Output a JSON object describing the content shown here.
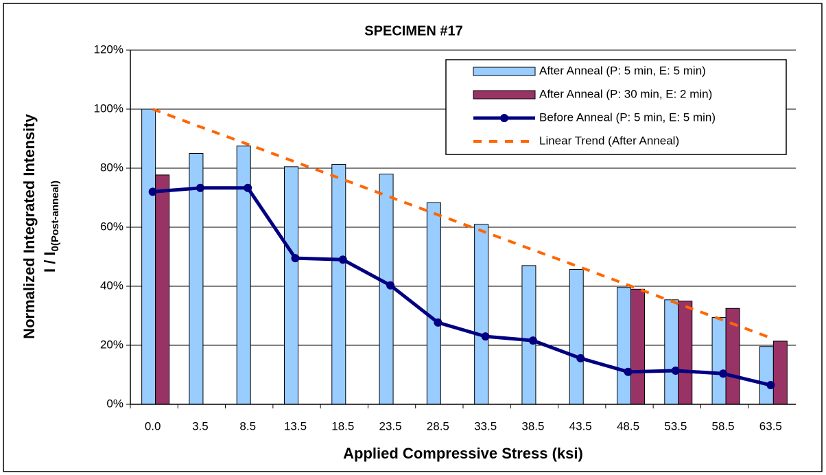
{
  "chart_data": {
    "type": "bar",
    "title": "SPECIMEN #17",
    "x_label": "Applied Compressive Stress (ksi)",
    "y_label": "Normalized Integrated Intensity",
    "y_label_2": "I / I",
    "y_label_2_sub": "0(Post-anneal)",
    "categories": [
      "0.0",
      "3.5",
      "8.5",
      "13.5",
      "18.5",
      "23.5",
      "28.5",
      "33.5",
      "38.5",
      "43.5",
      "48.5",
      "53.5",
      "58.5",
      "63.5"
    ],
    "ylim": [
      0,
      120
    ],
    "yticks": [
      {
        "value": 0,
        "label": "0%"
      },
      {
        "value": 20,
        "label": "20%"
      },
      {
        "value": 40,
        "label": "40%"
      },
      {
        "value": 60,
        "label": "60%"
      },
      {
        "value": 80,
        "label": "80%"
      },
      {
        "value": 100,
        "label": "100%"
      },
      {
        "value": 120,
        "label": "120%"
      }
    ],
    "grid": true,
    "legend": "upper right",
    "series": [
      {
        "name": "After Anneal (P: 5 min, E: 5 min)",
        "type": "bar",
        "color": "#99ccff",
        "values": [
          100,
          85,
          87.5,
          80.5,
          81.3,
          78,
          68.3,
          61,
          47,
          45.7,
          39.6,
          35.4,
          29.4,
          19.6
        ]
      },
      {
        "name": "After Anneal (P: 30 min, E: 2 min)",
        "type": "bar",
        "color": "#993366",
        "values": [
          77.7,
          null,
          null,
          null,
          null,
          null,
          null,
          null,
          null,
          null,
          39,
          35,
          32.5,
          21.4
        ]
      },
      {
        "name": "Before Anneal (P: 5 min, E: 5 min)",
        "type": "line",
        "color": "#000080",
        "values": [
          72,
          73.3,
          73.3,
          49.5,
          49,
          40.3,
          27.7,
          23,
          21.6,
          15.6,
          11,
          11.4,
          10.4,
          6.5
        ]
      },
      {
        "name": "Linear Trend (After Anneal)",
        "type": "dashed",
        "color": "#ff6600",
        "values": [
          100,
          94,
          88.1,
          82.1,
          76.2,
          70.2,
          64.2,
          58.3,
          52.3,
          46.4,
          40.4,
          34.4,
          28.5,
          22.5
        ]
      }
    ]
  }
}
